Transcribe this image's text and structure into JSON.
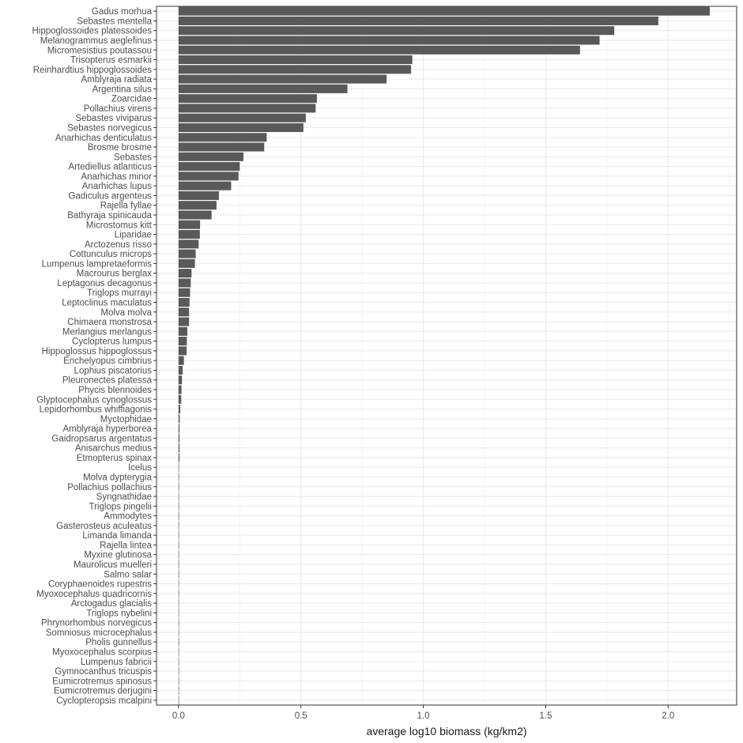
{
  "chart_data": {
    "type": "bar",
    "orientation": "horizontal",
    "title": "",
    "xlabel": "average log10 biomass (kg/km2)",
    "ylabel": "",
    "xlim": [
      -0.09,
      2.28
    ],
    "x_ticks": [
      0.0,
      0.5,
      1.0,
      1.5,
      2.0
    ],
    "x_tick_labels": [
      "0.0",
      "0.5",
      "1.0",
      "1.5",
      "2.0"
    ],
    "grid": true,
    "legend": "none",
    "bar_color": "#595959",
    "categories": [
      "Gadus morhua",
      "Sebastes mentella",
      "Hippoglossoides platessoides",
      "Melanogrammus aeglefinus",
      "Micromesistius poutassou",
      "Trisopterus esmarkii",
      "Reinhardtius hippoglossoides",
      "Amblyraja radiata",
      "Argentina silus",
      "Zoarcidae",
      "Pollachius virens",
      "Sebastes viviparus",
      "Sebastes norvegicus",
      "Anarhichas denticulatus",
      "Brosme brosme",
      "Sebastes",
      "Artediellus atlanticus",
      "Anarhichas minor",
      "Anarhichas lupus",
      "Gadiculus argenteus",
      "Rajella fyllae",
      "Bathyraja spinicauda",
      "Microstomus kitt",
      "Liparidae",
      "Arctozenus risso",
      "Cottunculus microps",
      "Lumpenus lampretaeformis",
      "Macrourus berglax",
      "Leptagonus decagonus",
      "Triglops murrayi",
      "Leptoclinus maculatus",
      "Molva molva",
      "Chimaera monstrosa",
      "Merlangius merlangus",
      "Cyclopterus lumpus",
      "Hippoglossus hippoglossus",
      "Enchelyopus cimbrius",
      "Lophius piscatorius",
      "Pleuronectes platessa",
      "Phycis blennoides",
      "Glyptocephalus cynoglossus",
      "Lepidorhombus whiffiagonis",
      "Myctophidae",
      "Amblyraja hyperborea",
      "Gaidropsarus argentatus",
      "Anisarchus medius",
      "Etmopterus spinax",
      "Icelus",
      "Molva dypterygia",
      "Pollachius pollachius",
      "Syngnathidae",
      "Triglops pingelii",
      "Ammodytes",
      "Gasterosteus aculeatus",
      "Limanda limanda",
      "Rajella lintea",
      "Myxine glutinosa",
      "Maurolicus muelleri",
      "Salmo salar",
      "Coryphaenoides rupestris",
      "Myoxocephalus quadricornis",
      "Arctogadus glacialis",
      "Triglops nybelini",
      "Phrynorhombus norvegicus",
      "Somniosus microcephalus",
      "Pholis gunnellus",
      "Myoxocephalus scorpius",
      "Lumpenus fabricii",
      "Gymnocanthus tricuspis",
      "Eumicrotremus spinosus",
      "Eumicrotremus derjugini",
      "Cyclopteropsis mcalpini"
    ],
    "values": [
      2.17,
      1.96,
      1.78,
      1.72,
      1.64,
      0.955,
      0.95,
      0.85,
      0.69,
      0.565,
      0.56,
      0.52,
      0.51,
      0.36,
      0.35,
      0.265,
      0.25,
      0.245,
      0.215,
      0.165,
      0.155,
      0.135,
      0.088,
      0.087,
      0.082,
      0.07,
      0.067,
      0.053,
      0.05,
      0.047,
      0.045,
      0.043,
      0.043,
      0.036,
      0.034,
      0.033,
      0.022,
      0.017,
      0.014,
      0.012,
      0.011,
      0.007,
      0.005,
      0.004,
      0.004,
      0.004,
      0.004,
      0.002,
      0.002,
      0.002,
      0.002,
      0.002,
      0.002,
      0.002,
      0.002,
      0.002,
      0.002,
      0.002,
      0.002,
      0.0005,
      0.0005,
      0.0005,
      0.0004,
      0.0004,
      0.0004,
      0.0003,
      0.0003,
      0.0003,
      0.0002,
      0.0002,
      0.0002,
      0.0002
    ]
  }
}
